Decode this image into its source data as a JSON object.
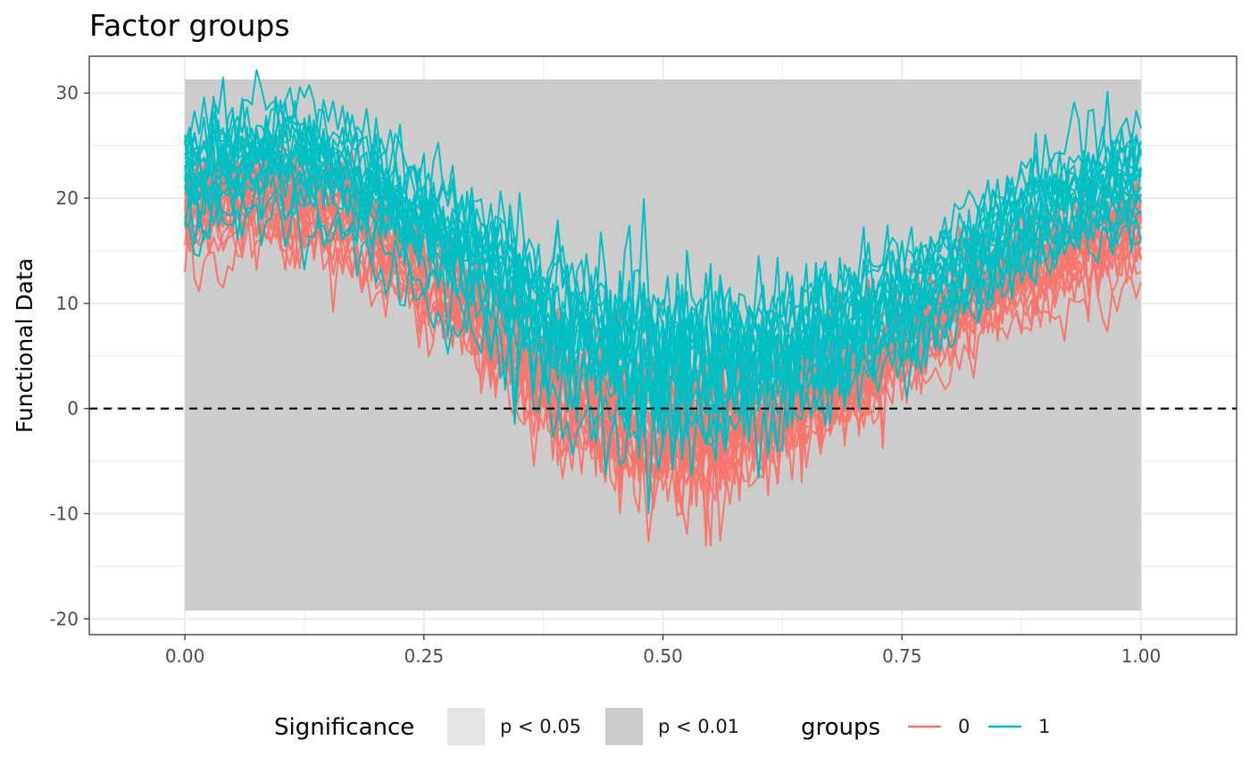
{
  "chart_data": {
    "type": "line",
    "title": "Factor groups",
    "xlabel": "",
    "ylabel": "Functional Data",
    "xlim": [
      -0.1,
      1.1
    ],
    "ylim": [
      -21.5,
      33.5
    ],
    "x_ticks": [
      0.0,
      0.25,
      0.5,
      0.75,
      1.0
    ],
    "x_tick_labels": [
      "0.00",
      "0.25",
      "0.50",
      "0.75",
      "1.00"
    ],
    "y_ticks": [
      -20,
      -10,
      0,
      10,
      20,
      30
    ],
    "y_tick_labels": [
      "-20",
      "-10",
      "0",
      "10",
      "20",
      "30"
    ],
    "grid": true,
    "reference_line": {
      "y": 0,
      "style": "dashed",
      "color": "#000000"
    },
    "significance_regions": [
      {
        "x_start": 0.0,
        "x_end": 1.0,
        "level": "p < 0.01",
        "color": "#cccccc",
        "y_min": -19.2,
        "y_max": 31.3
      }
    ],
    "series": [
      {
        "name": "0",
        "color": "#F8766D",
        "n_curves": 20,
        "mean_profile_x": [
          0.0,
          0.1,
          0.2,
          0.3,
          0.4,
          0.5,
          0.6,
          0.7,
          0.8,
          0.9,
          1.0
        ],
        "mean_profile_y": [
          19,
          20,
          16,
          9,
          1,
          -3,
          -1,
          3,
          9,
          14,
          17
        ]
      },
      {
        "name": "1",
        "color": "#00BFC4",
        "n_curves": 20,
        "mean_profile_x": [
          0.0,
          0.1,
          0.2,
          0.3,
          0.4,
          0.5,
          0.6,
          0.7,
          0.8,
          0.9,
          1.0
        ],
        "mean_profile_y": [
          21,
          23,
          19,
          13,
          6,
          3,
          4,
          7,
          12,
          18,
          21
        ]
      }
    ],
    "legend": {
      "placement": "bottom",
      "significance_title": "Significance",
      "significance_items": [
        {
          "label": "p < 0.05",
          "color": "#e5e5e5"
        },
        {
          "label": "p < 0.01",
          "color": "#cccccc"
        }
      ],
      "groups_title": "groups",
      "group_items": [
        {
          "label": "0",
          "color": "#F8766D"
        },
        {
          "label": "1",
          "color": "#00BFC4"
        }
      ]
    }
  }
}
